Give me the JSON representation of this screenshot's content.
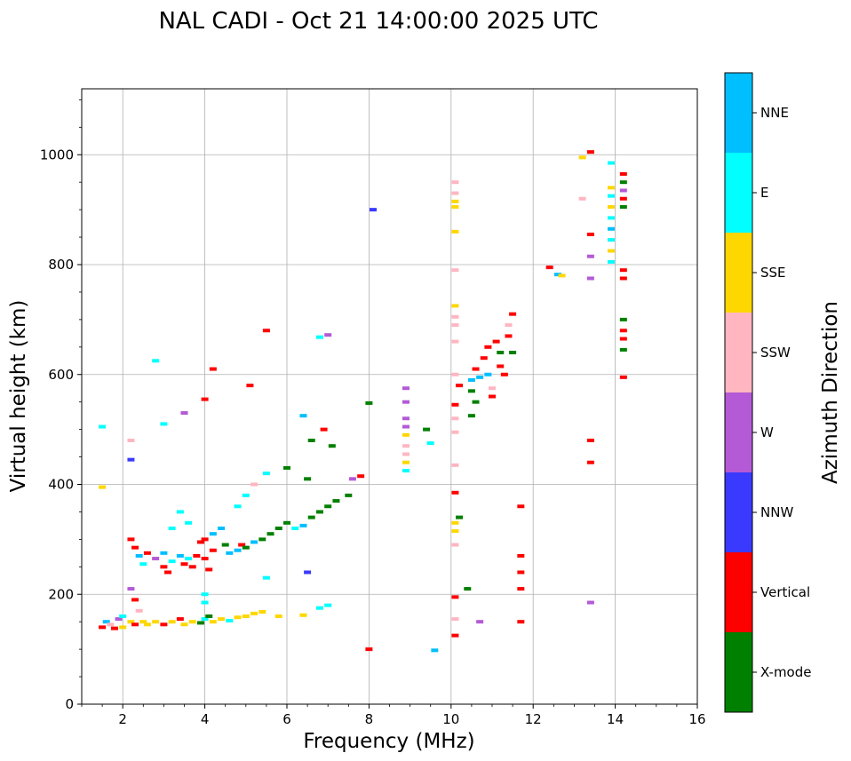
{
  "chart_data": {
    "type": "scatter",
    "title": "NAL CADI - Oct 21 14:00:00 2025 UTC",
    "xlabel": "Frequency (MHz)",
    "ylabel": "Virtual height (km)",
    "xlim": [
      1,
      16
    ],
    "ylim": [
      0,
      1120
    ],
    "x_ticks": [
      2,
      4,
      6,
      8,
      10,
      12,
      14,
      16
    ],
    "y_ticks": [
      0,
      200,
      400,
      600,
      800,
      1000
    ],
    "grid": true,
    "colorbar": {
      "label": "Azimuth Direction",
      "entries": [
        {
          "name": "X-mode",
          "color": "#008000"
        },
        {
          "name": "Vertical",
          "color": "#ff0000"
        },
        {
          "name": "NNW",
          "color": "#3a3aff"
        },
        {
          "name": "W",
          "color": "#b45ad6"
        },
        {
          "name": "SSW",
          "color": "#ffb6c1"
        },
        {
          "name": "SSE",
          "color": "#ffd700"
        },
        {
          "name": "E",
          "color": "#00ffff"
        },
        {
          "name": "NNE",
          "color": "#00bfff"
        }
      ]
    },
    "points": [
      [
        1.5,
        140,
        "Vertical"
      ],
      [
        1.6,
        150,
        "NNE"
      ],
      [
        1.7,
        145,
        "SSW"
      ],
      [
        1.8,
        138,
        "Vertical"
      ],
      [
        1.9,
        155,
        "W"
      ],
      [
        2.0,
        140,
        "SSE"
      ],
      [
        2.0,
        160,
        "E"
      ],
      [
        2.2,
        150,
        "SSE"
      ],
      [
        2.3,
        145,
        "Vertical"
      ],
      [
        2.4,
        170,
        "SSW"
      ],
      [
        2.5,
        150,
        "SSE"
      ],
      [
        2.6,
        145,
        "SSE"
      ],
      [
        2.8,
        150,
        "SSE"
      ],
      [
        3.0,
        145,
        "Vertical"
      ],
      [
        3.2,
        150,
        "SSE"
      ],
      [
        3.4,
        155,
        "Vertical"
      ],
      [
        3.5,
        145,
        "SSE"
      ],
      [
        3.7,
        150,
        "SSE"
      ],
      [
        3.9,
        148,
        "X-mode"
      ],
      [
        4.0,
        155,
        "E"
      ],
      [
        4.1,
        160,
        "X-mode"
      ],
      [
        4.2,
        150,
        "SSE"
      ],
      [
        4.4,
        155,
        "SSE"
      ],
      [
        4.6,
        152,
        "E"
      ],
      [
        4.8,
        158,
        "SSE"
      ],
      [
        5.0,
        160,
        "SSE"
      ],
      [
        5.2,
        165,
        "SSE"
      ],
      [
        5.4,
        168,
        "SSE"
      ],
      [
        5.8,
        160,
        "SSE"
      ],
      [
        6.4,
        162,
        "SSE"
      ],
      [
        6.8,
        175,
        "E"
      ],
      [
        7.0,
        180,
        "E"
      ],
      [
        4.0,
        200,
        "E"
      ],
      [
        4.0,
        185,
        "E"
      ],
      [
        5.5,
        230,
        "E"
      ],
      [
        6.5,
        240,
        "NNW"
      ],
      [
        2.2,
        210,
        "W"
      ],
      [
        2.3,
        190,
        "Vertical"
      ],
      [
        2.2,
        300,
        "Vertical"
      ],
      [
        2.3,
        285,
        "Vertical"
      ],
      [
        2.4,
        270,
        "NNE"
      ],
      [
        2.5,
        255,
        "E"
      ],
      [
        2.6,
        275,
        "Vertical"
      ],
      [
        2.8,
        265,
        "W"
      ],
      [
        3.0,
        250,
        "Vertical"
      ],
      [
        3.0,
        275,
        "NNE"
      ],
      [
        3.1,
        240,
        "Vertical"
      ],
      [
        3.2,
        260,
        "E"
      ],
      [
        3.4,
        270,
        "NNE"
      ],
      [
        3.5,
        255,
        "Vertical"
      ],
      [
        3.6,
        265,
        "E"
      ],
      [
        3.7,
        250,
        "Vertical"
      ],
      [
        3.8,
        270,
        "Vertical"
      ],
      [
        4.0,
        265,
        "Vertical"
      ],
      [
        4.1,
        245,
        "Vertical"
      ],
      [
        4.2,
        280,
        "Vertical"
      ],
      [
        3.9,
        295,
        "Vertical"
      ],
      [
        4.0,
        300,
        "Vertical"
      ],
      [
        4.2,
        310,
        "NNE"
      ],
      [
        4.4,
        320,
        "NNE"
      ],
      [
        4.5,
        290,
        "X-mode"
      ],
      [
        4.6,
        275,
        "NNE"
      ],
      [
        4.8,
        280,
        "NNE"
      ],
      [
        4.9,
        290,
        "Vertical"
      ],
      [
        5.0,
        285,
        "X-mode"
      ],
      [
        5.2,
        295,
        "NNE"
      ],
      [
        5.4,
        300,
        "X-mode"
      ],
      [
        5.6,
        310,
        "X-mode"
      ],
      [
        5.8,
        320,
        "X-mode"
      ],
      [
        6.0,
        330,
        "X-mode"
      ],
      [
        6.2,
        320,
        "E"
      ],
      [
        6.4,
        325,
        "NNE"
      ],
      [
        6.6,
        340,
        "X-mode"
      ],
      [
        6.8,
        350,
        "X-mode"
      ],
      [
        7.0,
        360,
        "X-mode"
      ],
      [
        7.2,
        370,
        "X-mode"
      ],
      [
        7.5,
        380,
        "X-mode"
      ],
      [
        7.6,
        410,
        "W"
      ],
      [
        7.8,
        415,
        "Vertical"
      ],
      [
        3.2,
        320,
        "E"
      ],
      [
        3.4,
        350,
        "E"
      ],
      [
        3.6,
        330,
        "E"
      ],
      [
        4.8,
        360,
        "E"
      ],
      [
        5.0,
        380,
        "E"
      ],
      [
        5.2,
        400,
        "SSW"
      ],
      [
        5.5,
        420,
        "E"
      ],
      [
        6.0,
        430,
        "X-mode"
      ],
      [
        6.5,
        410,
        "X-mode"
      ],
      [
        6.4,
        525,
        "NNE"
      ],
      [
        6.9,
        500,
        "Vertical"
      ],
      [
        6.6,
        480,
        "X-mode"
      ],
      [
        7.1,
        470,
        "X-mode"
      ],
      [
        4.0,
        555,
        "Vertical"
      ],
      [
        4.2,
        610,
        "Vertical"
      ],
      [
        5.1,
        580,
        "Vertical"
      ],
      [
        5.5,
        680,
        "Vertical"
      ],
      [
        6.8,
        668,
        "E"
      ],
      [
        7.0,
        672,
        "W"
      ],
      [
        3.0,
        510,
        "E"
      ],
      [
        3.5,
        530,
        "W"
      ],
      [
        1.5,
        505,
        "E"
      ],
      [
        1.5,
        395,
        "SSE"
      ],
      [
        2.2,
        445,
        "NNW"
      ],
      [
        2.2,
        480,
        "SSW"
      ],
      [
        2.8,
        625,
        "E"
      ],
      [
        8.1,
        900,
        "NNW"
      ],
      [
        8.9,
        575,
        "W"
      ],
      [
        8.9,
        550,
        "W"
      ],
      [
        8.9,
        520,
        "W"
      ],
      [
        8.9,
        505,
        "W"
      ],
      [
        8.9,
        490,
        "SSE"
      ],
      [
        8.9,
        470,
        "SSW"
      ],
      [
        8.9,
        455,
        "SSW"
      ],
      [
        8.9,
        440,
        "SSE"
      ],
      [
        8.9,
        425,
        "E"
      ],
      [
        9.4,
        500,
        "X-mode"
      ],
      [
        9.5,
        475,
        "E"
      ],
      [
        10.1,
        950,
        "SSW"
      ],
      [
        10.1,
        930,
        "SSW"
      ],
      [
        10.1,
        915,
        "SSE"
      ],
      [
        10.1,
        905,
        "SSE"
      ],
      [
        10.1,
        860,
        "SSE"
      ],
      [
        10.1,
        790,
        "SSW"
      ],
      [
        10.1,
        725,
        "SSE"
      ],
      [
        10.1,
        705,
        "SSW"
      ],
      [
        10.1,
        690,
        "SSW"
      ],
      [
        10.1,
        660,
        "SSW"
      ],
      [
        10.1,
        600,
        "SSW"
      ],
      [
        10.2,
        580,
        "Vertical"
      ],
      [
        10.1,
        545,
        "Vertical"
      ],
      [
        10.1,
        520,
        "SSW"
      ],
      [
        10.1,
        495,
        "SSW"
      ],
      [
        10.1,
        435,
        "SSW"
      ],
      [
        10.1,
        385,
        "Vertical"
      ],
      [
        10.1,
        330,
        "SSE"
      ],
      [
        10.1,
        315,
        "SSE"
      ],
      [
        10.1,
        290,
        "SSW"
      ],
      [
        10.1,
        195,
        "Vertical"
      ],
      [
        10.1,
        155,
        "SSW"
      ],
      [
        10.1,
        125,
        "Vertical"
      ],
      [
        10.2,
        340,
        "X-mode"
      ],
      [
        10.4,
        210,
        "X-mode"
      ],
      [
        10.5,
        590,
        "NNE"
      ],
      [
        10.5,
        570,
        "X-mode"
      ],
      [
        10.6,
        610,
        "Vertical"
      ],
      [
        10.7,
        595,
        "NNE"
      ],
      [
        10.6,
        550,
        "X-mode"
      ],
      [
        10.5,
        525,
        "X-mode"
      ],
      [
        10.8,
        630,
        "Vertical"
      ],
      [
        10.9,
        650,
        "Vertical"
      ],
      [
        10.9,
        600,
        "NNE"
      ],
      [
        11.0,
        575,
        "SSW"
      ],
      [
        11.0,
        560,
        "Vertical"
      ],
      [
        11.1,
        660,
        "Vertical"
      ],
      [
        11.2,
        640,
        "X-mode"
      ],
      [
        11.2,
        615,
        "Vertical"
      ],
      [
        11.3,
        600,
        "Vertical"
      ],
      [
        11.4,
        670,
        "Vertical"
      ],
      [
        11.4,
        690,
        "SSW"
      ],
      [
        11.5,
        640,
        "X-mode"
      ],
      [
        11.5,
        710,
        "Vertical"
      ],
      [
        11.7,
        360,
        "Vertical"
      ],
      [
        11.7,
        270,
        "Vertical"
      ],
      [
        11.7,
        240,
        "Vertical"
      ],
      [
        11.7,
        210,
        "Vertical"
      ],
      [
        11.7,
        150,
        "Vertical"
      ],
      [
        10.7,
        150,
        "W"
      ],
      [
        12.4,
        795,
        "Vertical"
      ],
      [
        12.6,
        782,
        "NNE"
      ],
      [
        12.7,
        780,
        "SSE"
      ],
      [
        13.2,
        995,
        "SSE"
      ],
      [
        13.4,
        1005,
        "Vertical"
      ],
      [
        13.2,
        920,
        "SSW"
      ],
      [
        13.4,
        855,
        "Vertical"
      ],
      [
        13.4,
        815,
        "W"
      ],
      [
        13.4,
        775,
        "W"
      ],
      [
        13.4,
        480,
        "Vertical"
      ],
      [
        13.4,
        440,
        "Vertical"
      ],
      [
        13.4,
        185,
        "W"
      ],
      [
        13.9,
        985,
        "E"
      ],
      [
        13.9,
        940,
        "SSE"
      ],
      [
        13.9,
        925,
        "E"
      ],
      [
        13.9,
        905,
        "SSE"
      ],
      [
        13.9,
        885,
        "E"
      ],
      [
        13.9,
        865,
        "NNE"
      ],
      [
        13.9,
        845,
        "E"
      ],
      [
        13.9,
        825,
        "SSE"
      ],
      [
        13.9,
        805,
        "E"
      ],
      [
        14.2,
        965,
        "Vertical"
      ],
      [
        14.2,
        950,
        "X-mode"
      ],
      [
        14.2,
        935,
        "W"
      ],
      [
        14.2,
        920,
        "Vertical"
      ],
      [
        14.2,
        905,
        "X-mode"
      ],
      [
        14.2,
        790,
        "Vertical"
      ],
      [
        14.2,
        775,
        "Vertical"
      ],
      [
        14.2,
        700,
        "X-mode"
      ],
      [
        14.2,
        680,
        "Vertical"
      ],
      [
        14.2,
        665,
        "Vertical"
      ],
      [
        14.2,
        645,
        "X-mode"
      ],
      [
        14.2,
        595,
        "Vertical"
      ],
      [
        8.0,
        100,
        "Vertical"
      ],
      [
        9.6,
        98,
        "NNE"
      ],
      [
        8.0,
        548,
        "X-mode"
      ]
    ]
  }
}
